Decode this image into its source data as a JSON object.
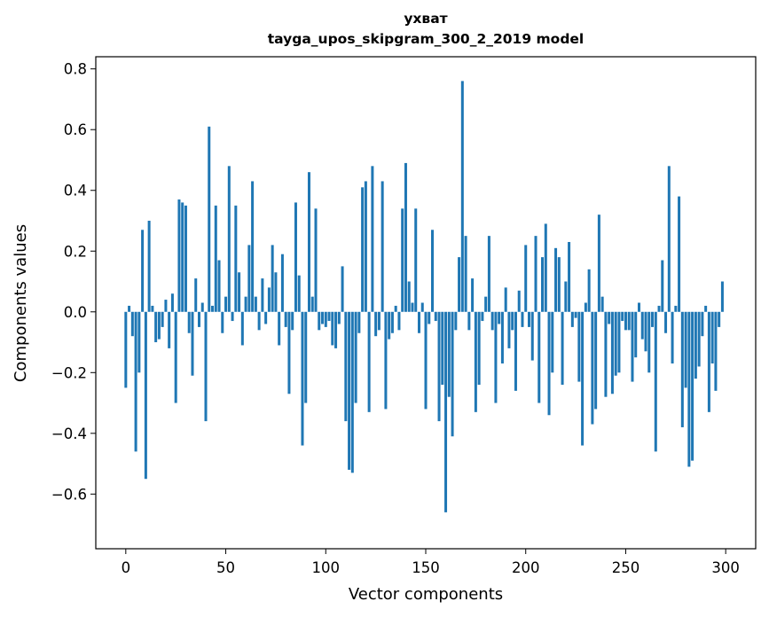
{
  "chart_data": {
    "type": "bar",
    "title_line1": "ухват",
    "title_line2": "tayga_upos_skipgram_300_2_2019 model",
    "xlabel": "Vector components",
    "ylabel": "Components values",
    "xlim": [
      -15,
      315
    ],
    "ylim": [
      -0.78,
      0.84
    ],
    "x_ticks": [
      0,
      50,
      100,
      150,
      200,
      250,
      300
    ],
    "x_tick_labels": [
      "0",
      "50",
      "100",
      "150",
      "200",
      "250",
      "300"
    ],
    "y_ticks": [
      -0.6,
      -0.4,
      -0.2,
      0.0,
      0.2,
      0.4,
      0.6,
      0.8
    ],
    "y_tick_labels": [
      "−0.6",
      "−0.4",
      "−0.2",
      "0.0",
      "0.2",
      "0.4",
      "0.6",
      "0.8"
    ],
    "grid": false,
    "bar_color": "#1f77b4",
    "values": [
      -0.25,
      0.02,
      -0.08,
      -0.46,
      -0.2,
      0.27,
      -0.55,
      0.3,
      0.02,
      -0.1,
      -0.09,
      -0.05,
      0.04,
      -0.12,
      0.06,
      -0.3,
      0.37,
      0.36,
      0.35,
      -0.07,
      -0.21,
      0.11,
      -0.05,
      0.03,
      -0.36,
      0.61,
      0.02,
      0.35,
      0.17,
      -0.07,
      0.05,
      0.48,
      -0.03,
      0.35,
      0.13,
      -0.11,
      0.05,
      0.22,
      0.43,
      0.05,
      -0.06,
      0.11,
      -0.04,
      0.08,
      0.22,
      0.13,
      -0.11,
      0.19,
      -0.05,
      -0.27,
      -0.06,
      0.36,
      0.12,
      -0.44,
      -0.3,
      0.46,
      0.05,
      0.34,
      -0.06,
      -0.04,
      -0.05,
      -0.03,
      -0.11,
      -0.12,
      -0.04,
      0.15,
      -0.36,
      -0.52,
      -0.53,
      -0.3,
      -0.07,
      0.41,
      0.43,
      -0.33,
      0.48,
      -0.08,
      -0.06,
      0.43,
      -0.32,
      -0.09,
      -0.07,
      0.02,
      -0.06,
      0.34,
      0.49,
      0.1,
      0.03,
      0.34,
      -0.07,
      0.03,
      -0.32,
      -0.04,
      0.27,
      -0.03,
      -0.36,
      -0.24,
      -0.66,
      -0.28,
      -0.41,
      -0.06,
      0.18,
      0.76,
      0.25,
      -0.06,
      0.11,
      -0.33,
      -0.24,
      -0.03,
      0.05,
      0.25,
      -0.06,
      -0.3,
      -0.04,
      -0.17,
      0.08,
      -0.12,
      -0.06,
      -0.26,
      0.07,
      -0.05,
      0.22,
      -0.05,
      -0.16,
      0.25,
      -0.3,
      0.18,
      0.29,
      -0.34,
      -0.2,
      0.21,
      0.18,
      -0.24,
      0.1,
      0.23,
      -0.05,
      -0.02,
      -0.23,
      -0.44,
      0.03,
      0.14,
      -0.37,
      -0.32,
      0.32,
      0.05,
      -0.28,
      -0.04,
      -0.27,
      -0.21,
      -0.2,
      -0.03,
      -0.06,
      -0.06,
      -0.23,
      -0.15,
      0.03,
      -0.09,
      -0.13,
      -0.2,
      -0.05,
      -0.46,
      0.02,
      0.17,
      -0.07,
      0.48,
      -0.17,
      0.02,
      0.38,
      -0.38,
      -0.25,
      -0.51,
      -0.49,
      -0.22,
      -0.18,
      -0.08,
      0.02,
      -0.33,
      -0.17,
      -0.26,
      -0.05,
      0.1
    ]
  }
}
